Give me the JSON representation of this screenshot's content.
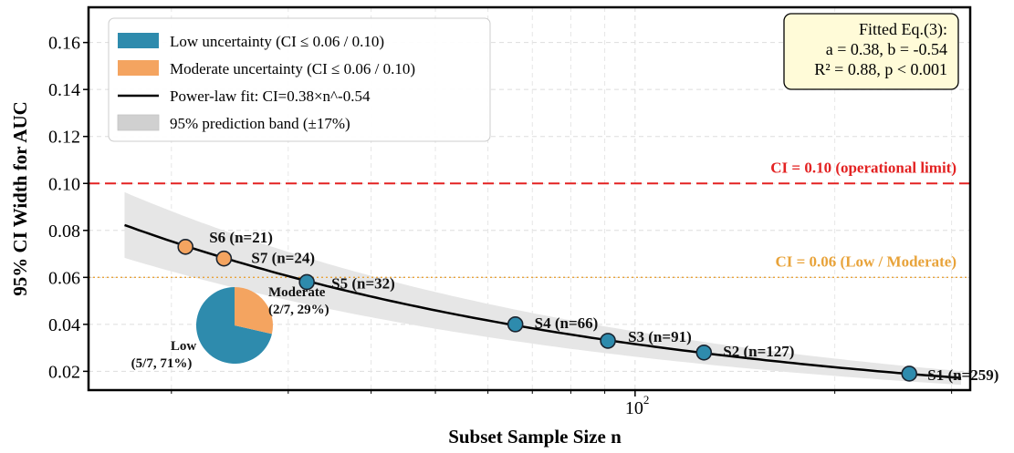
{
  "chart_data": {
    "type": "scatter",
    "xlabel": "Subset Sample Size  n",
    "ylabel": "95% CI Width for AUC",
    "x_scale": "log",
    "xlim": [
      15,
      320
    ],
    "ylim": [
      0.012,
      0.175
    ],
    "yticks": [
      0.02,
      0.04,
      0.06,
      0.08,
      0.1,
      0.12,
      0.14,
      0.16
    ],
    "ytick_labels": [
      "0.02",
      "0.04",
      "0.06",
      "0.08",
      "0.10",
      "0.12",
      "0.14",
      "0.16"
    ],
    "xticks": [
      100
    ],
    "xtick_labels": [
      "10",
      "2"
    ],
    "grid": true,
    "legend_position": "top-left",
    "legend": [
      {
        "label": "Low uncertainty (CI ≤ 0.06 / 0.10)",
        "kind": "patch",
        "color": "#2e8bad"
      },
      {
        "label": "Moderate uncertainty (CI ≤ 0.06 / 0.10)",
        "kind": "patch",
        "color": "#f4a460"
      },
      {
        "label": "Power-law fit: CI=0.38×n^-0.54",
        "kind": "line",
        "color": "#000000"
      },
      {
        "label": "95% prediction band (±17%)",
        "kind": "band",
        "color": "#d0d0d0"
      }
    ],
    "colors": {
      "low": "#2e8bad",
      "moderate": "#f4a460",
      "fit": "#000000",
      "band": "#e6e6e6",
      "limit": "#e32222",
      "threshold": "#e8a33a"
    },
    "points": [
      {
        "label": "S1 (n=259)",
        "n": 259,
        "ci": 0.019,
        "group": "low"
      },
      {
        "label": "S2 (n=127)",
        "n": 127,
        "ci": 0.028,
        "group": "low"
      },
      {
        "label": "S3 (n=91)",
        "n": 91,
        "ci": 0.033,
        "group": "low"
      },
      {
        "label": "S4 (n=66)",
        "n": 66,
        "ci": 0.04,
        "group": "low"
      },
      {
        "label": "S5 (n=32)",
        "n": 32,
        "ci": 0.058,
        "group": "low"
      },
      {
        "label": "S6 (n=21)",
        "n": 21,
        "ci": 0.073,
        "group": "moderate"
      },
      {
        "label": "S7 (n=24)",
        "n": 24,
        "ci": 0.068,
        "group": "moderate"
      }
    ],
    "fit": {
      "a": 0.38,
      "b": -0.54,
      "band_fraction": 0.17
    },
    "hlines": [
      {
        "y": 0.1,
        "label": "CI = 0.10  (operational limit)",
        "color": "#e32222",
        "style": "dashed"
      },
      {
        "y": 0.06,
        "label": "CI = 0.06  (Low / Moderate)",
        "color": "#e8a33a",
        "style": "dotted"
      }
    ],
    "annotation_box": {
      "lines": [
        "Fitted Eq.(3):",
        "a = 0.38,  b = -0.54",
        "R² = 0.88,  p < 0.001"
      ]
    },
    "inset_pie": {
      "slices": [
        {
          "name": "Low",
          "value": 5,
          "color": "#2e8bad",
          "label_lines": [
            "Low",
            "(5/7, 71%)"
          ]
        },
        {
          "name": "Moderate",
          "value": 2,
          "color": "#f4a460",
          "label_lines": [
            "Moderate",
            "(2/7, 29%)"
          ]
        }
      ]
    }
  }
}
